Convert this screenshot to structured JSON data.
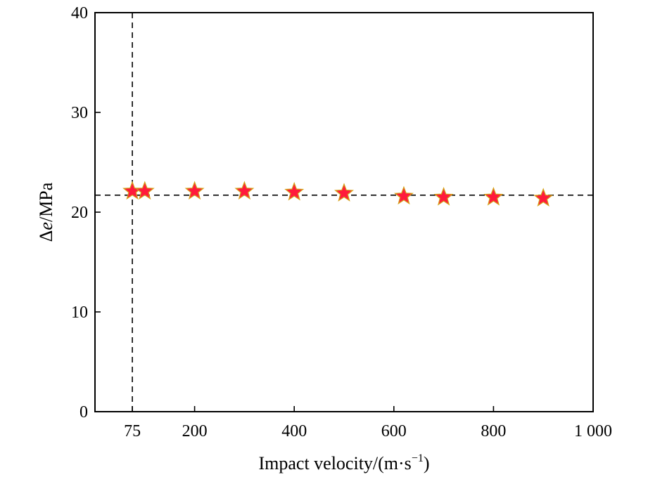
{
  "chart_data": {
    "type": "scatter",
    "title": "",
    "xlabel": "Impact velocity/(m·s",
    "xlabel_superscript": "−1",
    "xlabel_suffix": ")",
    "ylabel_prefix": "Δ",
    "ylabel_italic": "e",
    "ylabel_suffix": "/MPa",
    "xlim": [
      0,
      1000
    ],
    "ylim": [
      0,
      40
    ],
    "x_ticks": [
      {
        "value": 75,
        "label": "75"
      },
      {
        "value": 200,
        "label": "200"
      },
      {
        "value": 400,
        "label": "400"
      },
      {
        "value": 600,
        "label": "600"
      },
      {
        "value": 800,
        "label": "800"
      },
      {
        "value": 1000,
        "label": "1 000"
      }
    ],
    "y_ticks": [
      {
        "value": 0,
        "label": "0"
      },
      {
        "value": 10,
        "label": "10"
      },
      {
        "value": 20,
        "label": "20"
      },
      {
        "value": 30,
        "label": "30"
      },
      {
        "value": 40,
        "label": "40"
      }
    ],
    "grid": false,
    "marker": "star",
    "marker_color": "#ff1a3c",
    "marker_edge_color": "#d4a017",
    "reference_lines": [
      {
        "orientation": "vertical",
        "value": 75,
        "style": "dashed"
      },
      {
        "orientation": "horizontal",
        "value": 21.7,
        "style": "dashed"
      }
    ],
    "points": [
      {
        "x": 75,
        "y": 22.1
      },
      {
        "x": 100,
        "y": 22.1
      },
      {
        "x": 200,
        "y": 22.1
      },
      {
        "x": 300,
        "y": 22.1
      },
      {
        "x": 400,
        "y": 22.0
      },
      {
        "x": 500,
        "y": 21.9
      },
      {
        "x": 620,
        "y": 21.6
      },
      {
        "x": 700,
        "y": 21.5
      },
      {
        "x": 800,
        "y": 21.5
      },
      {
        "x": 900,
        "y": 21.4
      }
    ]
  }
}
